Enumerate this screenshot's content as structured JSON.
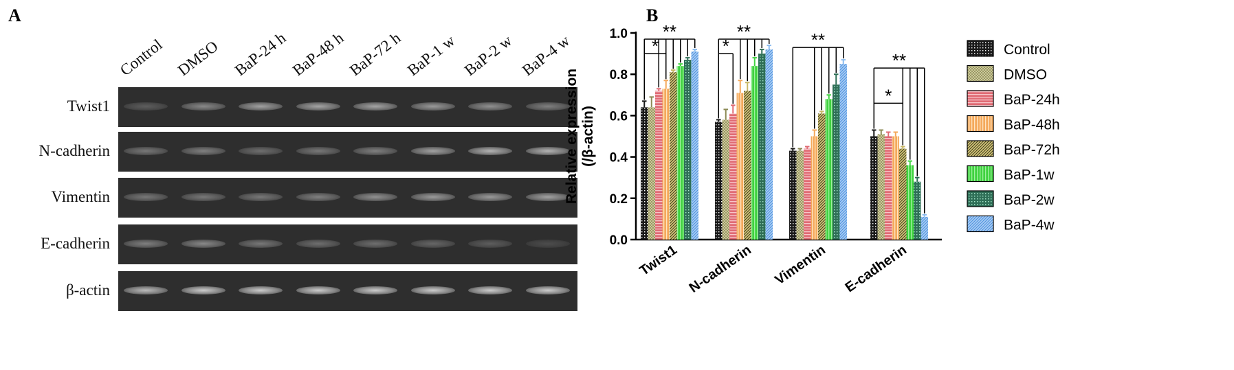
{
  "panels": {
    "a": {
      "letter": "A"
    },
    "b": {
      "letter": "B"
    }
  },
  "gel": {
    "lanes": [
      "Control",
      "DMSO",
      "BaP-24 h",
      "BaP-48 h",
      "BaP-72 h",
      "BaP-1 w",
      "BaP-2 w",
      "BaP-4 w"
    ],
    "rows": [
      {
        "label": "Twist1",
        "intensity": [
          0.2,
          0.45,
          0.6,
          0.62,
          0.62,
          0.55,
          0.5,
          0.4
        ]
      },
      {
        "label": "N-cadherin",
        "intensity": [
          0.35,
          0.4,
          0.3,
          0.35,
          0.4,
          0.6,
          0.7,
          0.7
        ]
      },
      {
        "label": "Vimentin",
        "intensity": [
          0.35,
          0.35,
          0.35,
          0.4,
          0.5,
          0.55,
          0.55,
          0.6
        ]
      },
      {
        "label": "E-cadherin",
        "intensity": [
          0.4,
          0.45,
          0.35,
          0.3,
          0.3,
          0.25,
          0.2,
          0.1
        ]
      },
      {
        "label": "β-actin",
        "intensity": [
          0.75,
          0.85,
          0.85,
          0.85,
          0.85,
          0.85,
          0.85,
          0.85
        ]
      }
    ]
  },
  "chart_data": {
    "type": "bar",
    "ylabel_line1": "Relative expression",
    "ylabel_line2": "(/β-actin)",
    "ylim": [
      0,
      1.0
    ],
    "yticks": [
      0.0,
      0.2,
      0.4,
      0.6,
      0.8,
      1.0
    ],
    "ytick_labels": [
      "0.0",
      "0.2",
      "0.4",
      "0.6",
      "0.8",
      "1.0"
    ],
    "categories": [
      "Twist1",
      "N-cadherin",
      "Vimentin",
      "E-cadherin"
    ],
    "legend_position": "right",
    "series": [
      {
        "name": "Control",
        "color": "#1a1a1a",
        "values": [
          0.64,
          0.57,
          0.43,
          0.5
        ],
        "errors": [
          0.03,
          0.01,
          0.01,
          0.03
        ]
      },
      {
        "name": "DMSO",
        "color": "#8c8a55",
        "values": [
          0.64,
          0.58,
          0.43,
          0.51
        ],
        "errors": [
          0.05,
          0.05,
          0.01,
          0.02
        ]
      },
      {
        "name": "BaP-24h",
        "color": "#e06b74",
        "values": [
          0.72,
          0.61,
          0.44,
          0.5
        ],
        "errors": [
          0.01,
          0.04,
          0.01,
          0.02
        ]
      },
      {
        "name": "BaP-48h",
        "color": "#f4a95b",
        "values": [
          0.73,
          0.71,
          0.5,
          0.5
        ],
        "errors": [
          0.04,
          0.06,
          0.03,
          0.02
        ]
      },
      {
        "name": "BaP-72h",
        "color": "#c8b765",
        "values": [
          0.81,
          0.72,
          0.61,
          0.44
        ],
        "errors": [
          0.01,
          0.04,
          0.01,
          0.01
        ]
      },
      {
        "name": "BaP-1w",
        "color": "#3fd23f",
        "values": [
          0.84,
          0.84,
          0.68,
          0.36
        ],
        "errors": [
          0.01,
          0.04,
          0.02,
          0.02
        ]
      },
      {
        "name": "BaP-2w",
        "color": "#2f6f57",
        "values": [
          0.87,
          0.9,
          0.75,
          0.28
        ],
        "errors": [
          0.01,
          0.02,
          0.05,
          0.02
        ]
      },
      {
        "name": "BaP-4w",
        "color": "#8bbcf0",
        "values": [
          0.91,
          0.92,
          0.85,
          0.11
        ],
        "errors": [
          0.01,
          0.02,
          0.02,
          0.01
        ]
      }
    ],
    "significance": [
      {
        "group": 0,
        "label": "**",
        "y": 0.97,
        "to": [
          2,
          3,
          4,
          5,
          6,
          7
        ]
      },
      {
        "group": 0,
        "label": "*",
        "y": 0.9,
        "to": [
          2,
          3
        ]
      },
      {
        "group": 1,
        "label": "**",
        "y": 0.97,
        "to": [
          3,
          4,
          5,
          6,
          7
        ]
      },
      {
        "group": 1,
        "label": "*",
        "y": 0.9,
        "to": [
          2
        ]
      },
      {
        "group": 2,
        "label": "**",
        "y": 0.93,
        "to": [
          3,
          4,
          5,
          6,
          7
        ]
      },
      {
        "group": 3,
        "label": "**",
        "y": 0.83,
        "to": [
          4,
          5,
          6,
          7
        ]
      },
      {
        "group": 3,
        "label": "*",
        "y": 0.66,
        "to": [
          4
        ]
      }
    ]
  }
}
